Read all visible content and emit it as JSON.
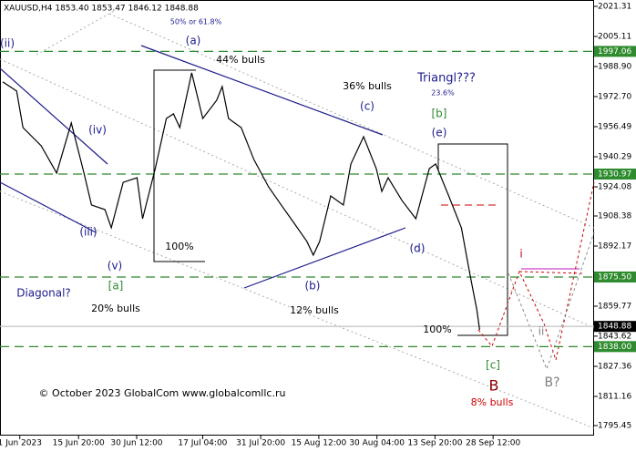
{
  "chart_data": {
    "type": "line",
    "header": "XAUUSD,H4  1853.40 1853.47 1846.12 1848.88",
    "color": "#000000",
    "x": [
      -4.3,
      -0.8,
      0.8,
      5.4,
      9.3,
      13.0,
      16.2,
      18.1,
      21.5,
      23.1,
      26.1,
      29.6,
      31.0,
      34.2,
      37.0,
      38.8,
      40.4,
      43.4,
      44.8,
      46.2,
      49.7,
      51.1,
      52.7,
      55.9,
      59.1,
      62.8,
      66.0,
      69.3,
      72.5,
      74.1,
      75.7,
      78.5,
      81.7,
      83.6,
      86.8,
      90.0,
      91.4,
      93.0,
      96.5,
      100.0,
      103.4,
      105.0,
      108.3,
      111.5,
      113.6,
      115.4,
      116.1
    ],
    "values": [
      1980.6,
      1975.7,
      1956.0,
      1946.2,
      1931.5,
      1958.5,
      1931.5,
      1914.3,
      1911.8,
      1902.0,
      1926.5,
      1929.0,
      1906.9,
      1933.9,
      1960.9,
      1963.4,
      1956.0,
      1985.5,
      1973.2,
      1960.9,
      1970.7,
      1978.1,
      1960.9,
      1956.0,
      1938.8,
      1924.1,
      1914.3,
      1904.4,
      1894.6,
      1887.3,
      1894.6,
      1919.2,
      1914.3,
      1936.4,
      1951.1,
      1933.9,
      1921.6,
      1929.0,
      1916.7,
      1906.9,
      1933.9,
      1936.4,
      1919.2,
      1902.0,
      1877.5,
      1857.8,
      1847.0
    ],
    "xlim": [
      -5,
      145
    ],
    "xticks": [
      {
        "value": 0,
        "label": "1 Jun 2023"
      },
      {
        "value": 14.83,
        "label": "15 Jun 20:00"
      },
      {
        "value": 29.5,
        "label": "30 Jun 12:00"
      },
      {
        "value": 46.17,
        "label": "17 Jul 04:00"
      },
      {
        "value": 60.83,
        "label": "31 Jul 20:00"
      },
      {
        "value": 75.5,
        "label": "15 Aug 12:00"
      },
      {
        "value": 90.17,
        "label": "30 Aug 04:00"
      },
      {
        "value": 104.83,
        "label": "13 Sep 20:00"
      },
      {
        "value": 119.5,
        "label": "28 Sep 12:00"
      }
    ],
    "ylim": [
      1795.45,
      2021.31
    ],
    "yticks": [
      2021.31,
      2005.11,
      {
        "value": 1988.9,
        "label": "1988.90"
      },
      {
        "value": 1972.7,
        "label": "1972.70"
      },
      1956.49,
      1940.29,
      1924.08,
      1908.38,
      1892.17,
      1859.77,
      1843.62,
      1827.36,
      1811.16,
      1795.45
    ],
    "grid": false,
    "levels": [
      {
        "value": 1997.06,
        "label": "1997.06",
        "color": "#2e8b2e",
        "style": "dashed"
      },
      {
        "value": 1930.97,
        "label": "1930.97",
        "color": "#2e8b2e",
        "style": "dashed"
      },
      {
        "value": 1875.5,
        "label": "1875.50",
        "color": "#2e8b2e",
        "style": "dashed"
      },
      {
        "value": 1848.88,
        "label": "1848.88",
        "color": "#000000",
        "style": "solid"
      },
      {
        "value": 1838.0,
        "label": "1838.00",
        "color": "#2e8b2e",
        "style": "dashed"
      }
    ],
    "annotations": [
      {
        "text": "50% or 61.8%",
        "color": "#1c1c8c"
      },
      {
        "text": "(a)",
        "color": "#1c1c8c"
      },
      {
        "text": "44% bulls",
        "color": "#000000"
      },
      {
        "text": "36% bulls",
        "color": "#000000"
      },
      {
        "text": "(c)",
        "color": "#1c1c8c"
      },
      {
        "text": "Triangl???",
        "color": "#1c1c8c"
      },
      {
        "text": "23.6%",
        "color": "#1c1c8c"
      },
      {
        "text": "[b]",
        "color": "#2e8b2e"
      },
      {
        "text": "(e)",
        "color": "#1c1c8c"
      },
      {
        "text": "(ii)",
        "color": "#1c1c8c"
      },
      {
        "text": "(iv)",
        "color": "#1c1c8c"
      },
      {
        "text": "(iii)",
        "color": "#1c1c8c"
      },
      {
        "text": "(v)",
        "color": "#1c1c8c"
      },
      {
        "text": "[a]",
        "color": "#2e8b2e"
      },
      {
        "text": "Diagonal?",
        "color": "#1c1c8c"
      },
      {
        "text": "20% bulls",
        "color": "#000000"
      },
      {
        "text": "100%",
        "color": "#000000"
      },
      {
        "text": "(b)",
        "color": "#1c1c8c"
      },
      {
        "text": "12% bulls",
        "color": "#000000"
      },
      {
        "text": "(d)",
        "color": "#1c1c8c"
      },
      {
        "text": "100%",
        "color": "#000000"
      },
      {
        "text": "[c]",
        "color": "#2e8b2e"
      },
      {
        "text": "B",
        "color": "#8b0000"
      },
      {
        "text": "8% bulls",
        "color": "#cc0000"
      },
      {
        "text": "i",
        "color": "#cc0000"
      },
      {
        "text": "ii",
        "color": "#808080"
      },
      {
        "text": "B?",
        "color": "#808080"
      },
      {
        "text": "© October 2023 GlobalCom www.globalcomllc.ru",
        "color": "#000000"
      }
    ]
  }
}
